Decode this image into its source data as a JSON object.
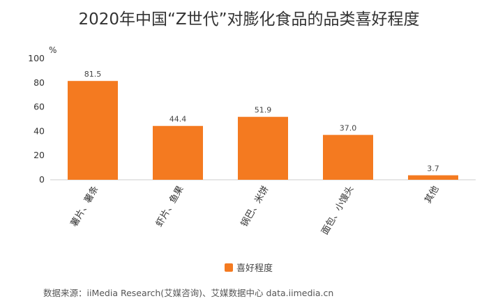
{
  "page_title": "2020年中国“Z世代”对膨化食品的品类喜好程度",
  "source_note": "数据来源：iiMedia Research(艾媒咨询)、艾媒数据中心 data.iimedia.cn",
  "colors": {
    "bar": "#f47a20",
    "axis": "#cccccc",
    "text": "#333333"
  },
  "chart_data": {
    "type": "bar",
    "title": "2020年中国“Z世代”对膨化食品的品类喜好程度",
    "categories": [
      "薯片、薯条",
      "虾片、鱼果",
      "锅巴、米饼",
      "面包、小馒头",
      "其他"
    ],
    "series": [
      {
        "name": "喜好程度",
        "values": [
          81.5,
          44.4,
          51.9,
          37.0,
          3.7
        ]
      }
    ],
    "value_labels": [
      "81.5",
      "44.4",
      "51.9",
      "37.0",
      "3.7"
    ],
    "ylabel": "%",
    "ylim": [
      0,
      100
    ],
    "yticks": [
      0,
      20,
      40,
      60,
      80,
      100
    ],
    "grid": false,
    "legend": "bottom-center"
  }
}
